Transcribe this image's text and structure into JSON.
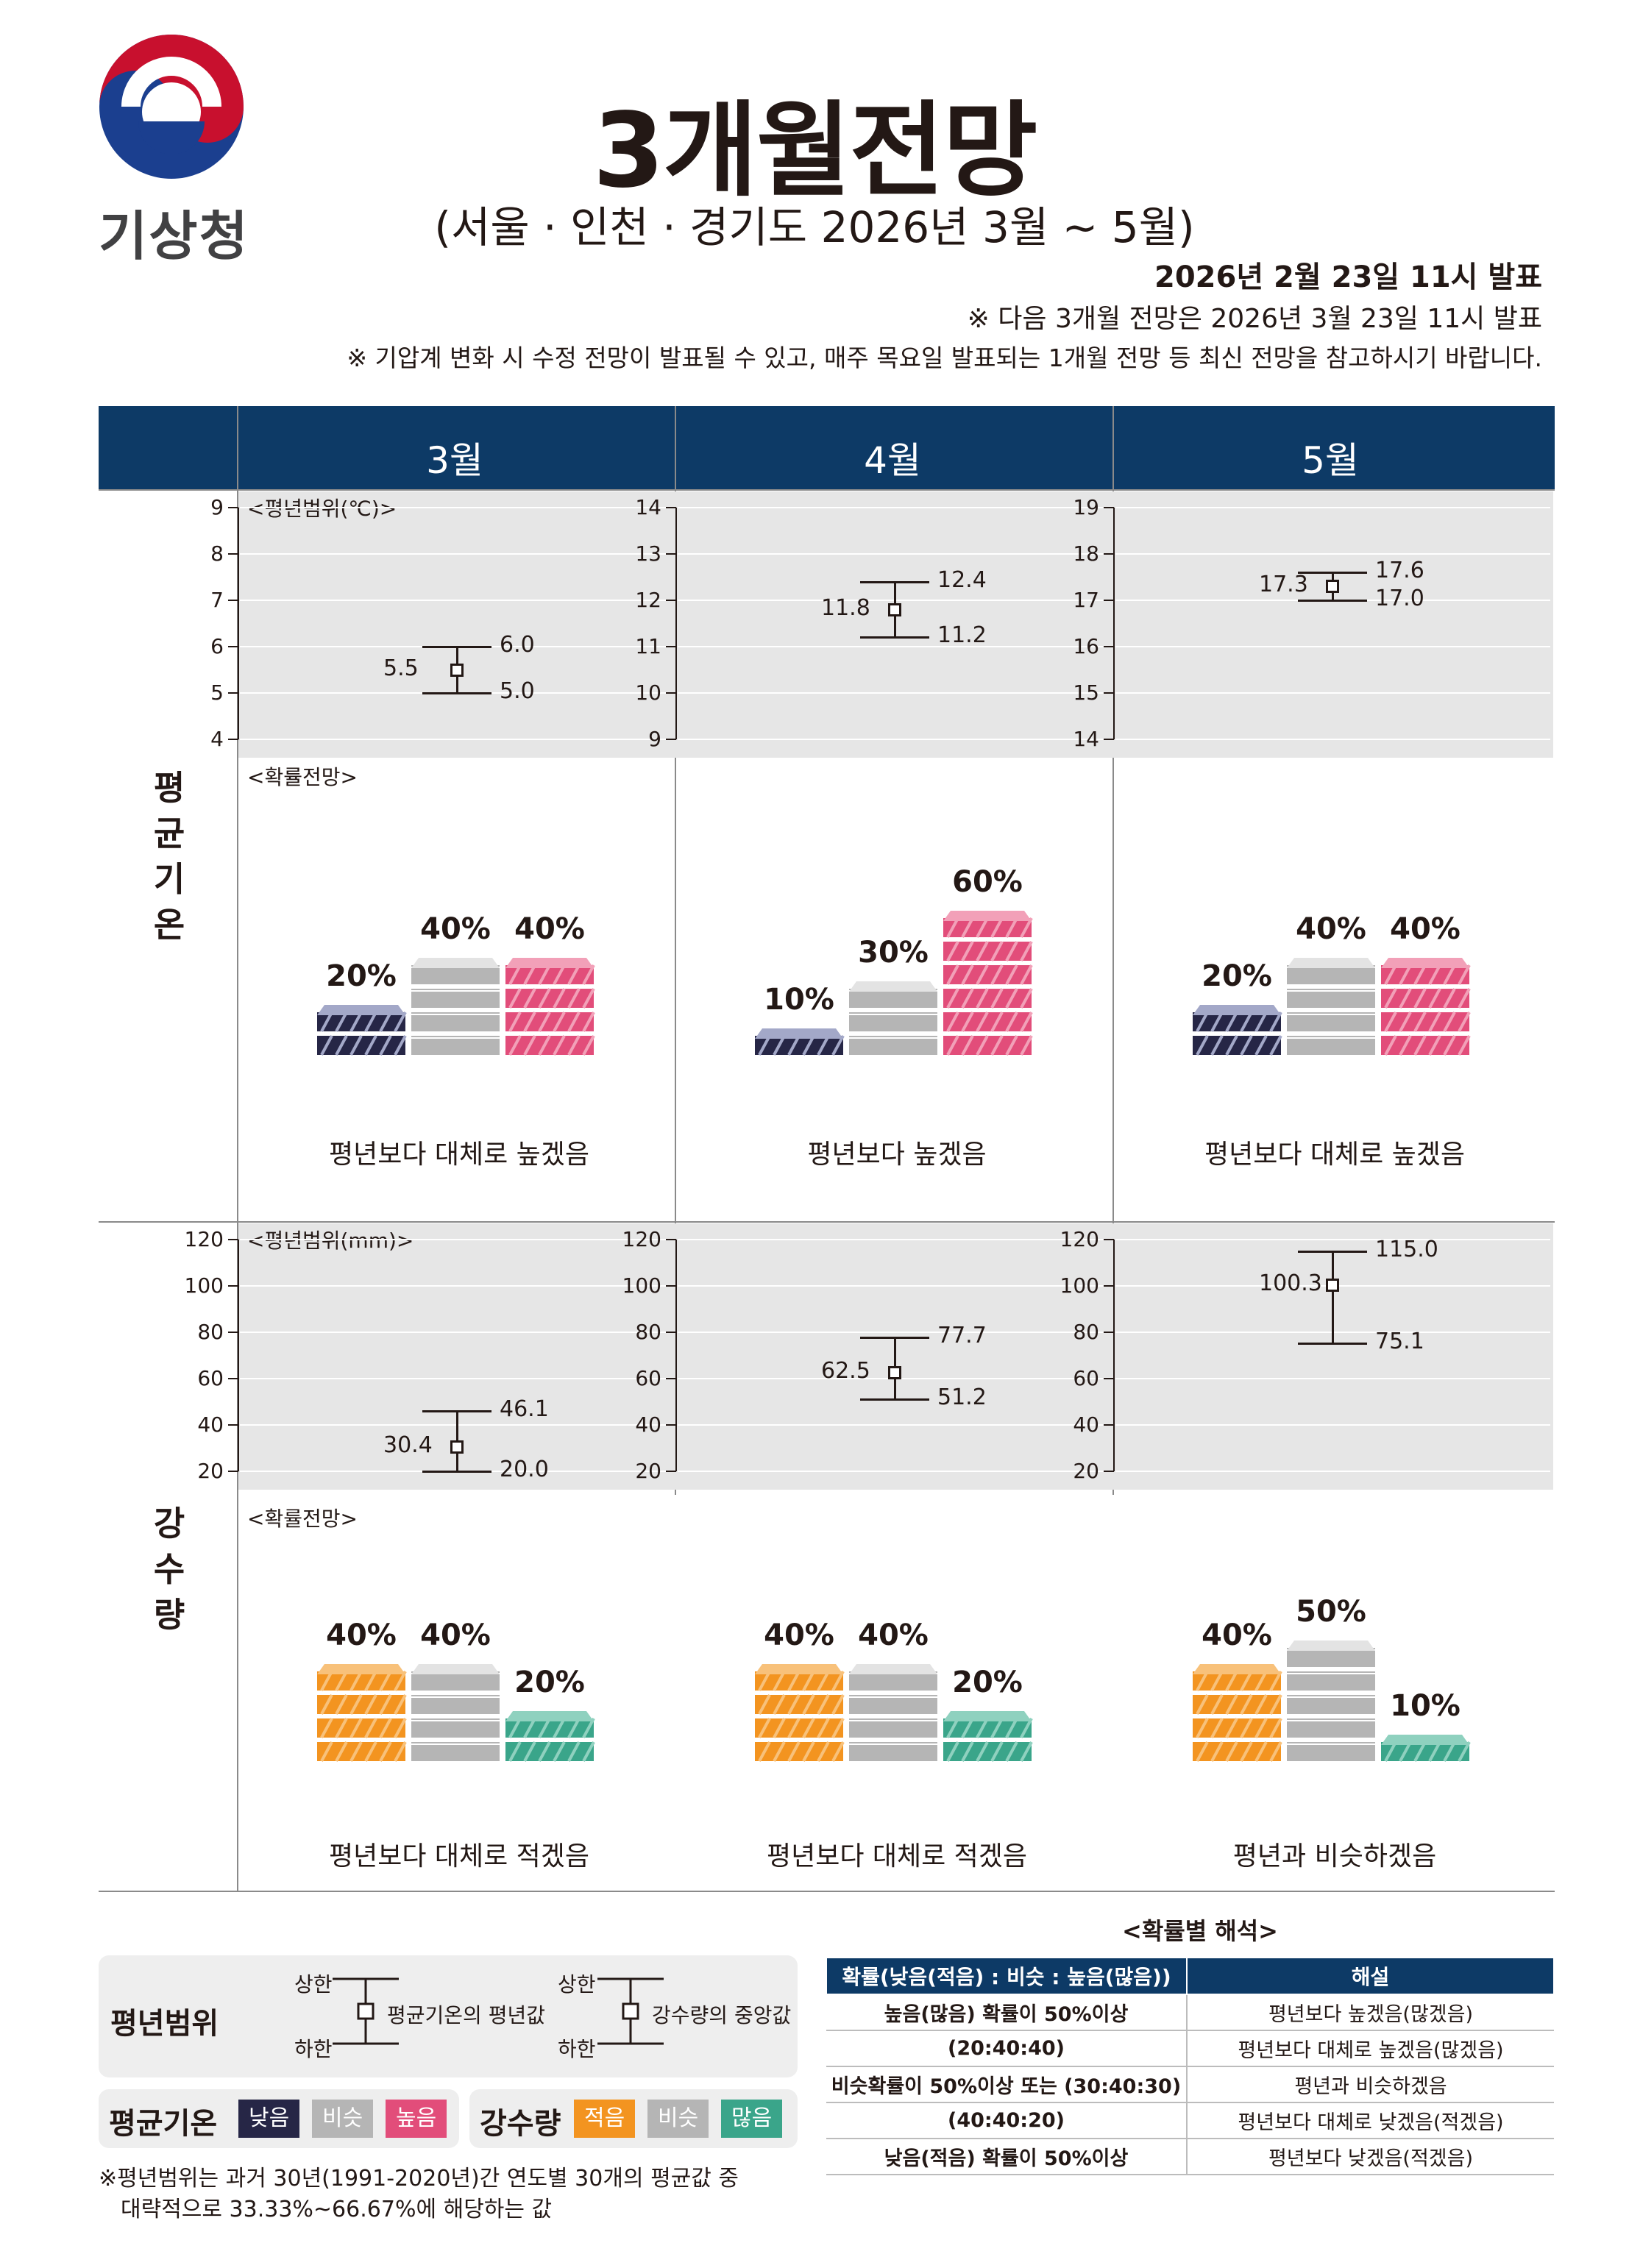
{
  "header": {
    "org_name": "기상청",
    "title": "3개월전망",
    "subtitle": "(서울 · 인천 · 경기도 2026년 3월 ~ 5월)",
    "issue": "2026년 2월 23일 11시 발표",
    "next_issue": "※ 다음 3개월 전망은 2026년 3월 23일 11시 발표",
    "notice": "※ 기압계 변화 시 수정 전망이 발표될 수 있고, 매주 목요일 발표되는 1개월 전망 등 최신 전망을 참고하시기 바랍니다."
  },
  "months": [
    "3월",
    "4월",
    "5월"
  ],
  "temperature": {
    "side_label": [
      "평",
      "균",
      "기",
      "온"
    ],
    "range_caption": "<평년범위(℃)>",
    "prob_caption": "<확률전망>",
    "panels": [
      {
        "ticks": [
          "9",
          "8",
          "7",
          "6",
          "5",
          "4"
        ],
        "axis_min": 4,
        "axis_max": 9,
        "upper": 6.0,
        "mean": 5.5,
        "lower": 5.0,
        "upper_lbl": "6.0",
        "mean_lbl": "5.5",
        "lower_lbl": "5.0",
        "probs": [
          20,
          40,
          40
        ],
        "prob_lbls": [
          "20%",
          "40%",
          "40%"
        ],
        "desc": "평년보다 대체로 높겠음"
      },
      {
        "ticks": [
          "14",
          "13",
          "12",
          "11",
          "10",
          "9"
        ],
        "axis_min": 9,
        "axis_max": 14,
        "upper": 12.4,
        "mean": 11.8,
        "lower": 11.2,
        "upper_lbl": "12.4",
        "mean_lbl": "11.8",
        "lower_lbl": "11.2",
        "probs": [
          10,
          30,
          60
        ],
        "prob_lbls": [
          "10%",
          "30%",
          "60%"
        ],
        "desc": "평년보다 높겠음"
      },
      {
        "ticks": [
          "19",
          "18",
          "17",
          "16",
          "15",
          "14"
        ],
        "axis_min": 14,
        "axis_max": 19,
        "upper": 17.6,
        "mean": 17.3,
        "lower": 17.0,
        "upper_lbl": "17.6",
        "mean_lbl": "17.3",
        "lower_lbl": "17.0",
        "probs": [
          20,
          40,
          40
        ],
        "prob_lbls": [
          "20%",
          "40%",
          "40%"
        ],
        "desc": "평년보다 대체로 높겠음"
      }
    ]
  },
  "precipitation": {
    "side_label": [
      "강",
      "수",
      "량"
    ],
    "range_caption": "<평년범위(mm)>",
    "prob_caption": "<확률전망>",
    "panels": [
      {
        "ticks": [
          "120",
          "100",
          "80",
          "60",
          "40",
          "20"
        ],
        "axis_min": 20,
        "axis_max": 120,
        "upper": 46.1,
        "mean": 30.4,
        "lower": 20.0,
        "upper_lbl": "46.1",
        "mean_lbl": "30.4",
        "lower_lbl": "20.0",
        "probs": [
          40,
          40,
          20
        ],
        "prob_lbls": [
          "40%",
          "40%",
          "20%"
        ],
        "desc": "평년보다 대체로 적겠음"
      },
      {
        "ticks": [
          "120",
          "100",
          "80",
          "60",
          "40",
          "20"
        ],
        "axis_min": 20,
        "axis_max": 120,
        "upper": 77.7,
        "mean": 62.5,
        "lower": 51.2,
        "upper_lbl": "77.7",
        "mean_lbl": "62.5",
        "lower_lbl": "51.2",
        "probs": [
          40,
          40,
          20
        ],
        "prob_lbls": [
          "40%",
          "40%",
          "20%"
        ],
        "desc": "평년보다 대체로 적겠음"
      },
      {
        "ticks": [
          "120",
          "100",
          "80",
          "60",
          "40",
          "20"
        ],
        "axis_min": 20,
        "axis_max": 120,
        "upper": 115.0,
        "mean": 100.3,
        "lower": 75.1,
        "upper_lbl": "115.0",
        "mean_lbl": "100.3",
        "lower_lbl": "75.1",
        "probs": [
          40,
          50,
          10
        ],
        "prob_lbls": [
          "40%",
          "50%",
          "10%"
        ],
        "desc": "평년과 비슷하겠음"
      }
    ]
  },
  "colors": {
    "navy": "#0d3a66",
    "temp_low": "#262646",
    "temp_low_top": "#a3a8c8",
    "similar": "#b5b5b5",
    "similar_top": "#e3e3e3",
    "temp_high": "#e24d7a",
    "temp_high_top": "#f2a0b8",
    "rain_low": "#f39420",
    "rain_low_top": "#f8c17a",
    "rain_high": "#3aa58a",
    "rain_high_top": "#8fd1bf"
  },
  "legend": {
    "range_title": "평년범위",
    "upper": "상한",
    "lower": "하한",
    "temp_mean": "평균기온의 평년값",
    "rain_median": "강수량의 중앙값",
    "temp_title": "평균기온",
    "temp_chips": [
      "낮음",
      "비슷",
      "높음"
    ],
    "rain_title": "강수량",
    "rain_chips": [
      "적음",
      "비슷",
      "많음"
    ],
    "footnote1": "※평년범위는 과거 30년(1991-2020년)간 연도별 30개의 평균값 중",
    "footnote2": "대략적으로 33.33%~66.67%에 해당하는 값"
  },
  "interpretation": {
    "title": "<확률별 해석>",
    "header": [
      "확률(낮음(적음) : 비슷 : 높음(많음))",
      "해설"
    ],
    "rows": [
      [
        "높음(많음) 확률이 50%이상",
        "평년보다 높겠음(많겠음)"
      ],
      [
        "(20:40:40)",
        "평년보다 대체로 높겠음(많겠음)"
      ],
      [
        "비슷확률이 50%이상 또는 (30:40:30)",
        "평년과 비슷하겠음"
      ],
      [
        "(40:40:20)",
        "평년보다 대체로 낮겠음(적겠음)"
      ],
      [
        "낮음(적음) 확률이 50%이상",
        "평년보다 낮겠음(적겠음)"
      ]
    ]
  }
}
